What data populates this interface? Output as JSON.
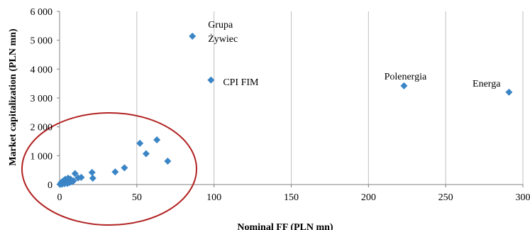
{
  "chart_data": {
    "type": "scatter",
    "title": "",
    "xlabel": "Nominal FF (PLN mn)",
    "ylabel": "Market capitalization (PLN mn)",
    "xlim": [
      0,
      300
    ],
    "ylim": [
      0,
      6000
    ],
    "x_ticks": [
      0,
      50,
      100,
      150,
      200,
      250,
      300
    ],
    "x_tick_labels": [
      "0",
      "50",
      "100",
      "150",
      "200",
      "250",
      "300"
    ],
    "y_ticks": [
      0,
      1000,
      2000,
      3000,
      4000,
      5000,
      6000
    ],
    "y_tick_labels": [
      "0",
      "1 000",
      "2 000",
      "3 000",
      "4 000",
      "5 000",
      "6 000"
    ],
    "grid": "vertical",
    "marker": "diamond",
    "series": [
      {
        "points": [
          {
            "x": 0.3,
            "y": 5
          },
          {
            "x": 0.6,
            "y": 25
          },
          {
            "x": 0.9,
            "y": 50
          },
          {
            "x": 1.2,
            "y": 80
          },
          {
            "x": 1.6,
            "y": 15
          },
          {
            "x": 2.0,
            "y": 110
          },
          {
            "x": 2.4,
            "y": 60
          },
          {
            "x": 2.8,
            "y": 140
          },
          {
            "x": 3.2,
            "y": 30
          },
          {
            "x": 3.6,
            "y": 180
          },
          {
            "x": 4.0,
            "y": 90
          },
          {
            "x": 4.5,
            "y": 120
          },
          {
            "x": 5.0,
            "y": 40
          },
          {
            "x": 5.5,
            "y": 220
          },
          {
            "x": 6.0,
            "y": 150
          },
          {
            "x": 6.5,
            "y": 70
          },
          {
            "x": 7.0,
            "y": 190
          },
          {
            "x": 8.0,
            "y": 100
          },
          {
            "x": 9.0,
            "y": 130
          },
          {
            "x": 10.0,
            "y": 380
          },
          {
            "x": 12.0,
            "y": 230
          },
          {
            "x": 14.0,
            "y": 250
          },
          {
            "x": 21.0,
            "y": 420
          },
          {
            "x": 21.5,
            "y": 220
          },
          {
            "x": 36.0,
            "y": 440
          },
          {
            "x": 42.0,
            "y": 580
          },
          {
            "x": 52.0,
            "y": 1430
          },
          {
            "x": 56.0,
            "y": 1070
          },
          {
            "x": 63.0,
            "y": 1550
          },
          {
            "x": 70.0,
            "y": 810
          },
          {
            "x": 86.0,
            "y": 5140,
            "label": "Grupa Żywiec"
          },
          {
            "x": 98.0,
            "y": 3620,
            "label": "CPI FIM"
          },
          {
            "x": 223.0,
            "y": 3420,
            "label": "Polenergia"
          },
          {
            "x": 291.0,
            "y": 3200,
            "label": "Energa"
          }
        ]
      }
    ],
    "annotation": {
      "shape": "ellipse",
      "color": "#B22222"
    },
    "colors": {
      "marker": "#3A85C6",
      "grid": "#BFBFBF",
      "axis": "#808080",
      "annotation": "#B22222"
    }
  }
}
